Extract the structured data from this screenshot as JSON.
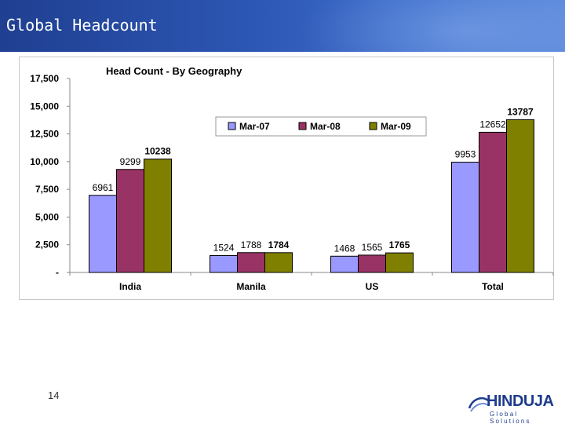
{
  "slide": {
    "title": "Global Headcount",
    "page_number": "14"
  },
  "logo": {
    "name": "HINDUJA",
    "subtitle": "Global Solutions"
  },
  "colors": {
    "header": "#2d57b4",
    "series": [
      "#9999ff",
      "#993366",
      "#808000"
    ]
  },
  "chart_data": {
    "type": "bar",
    "title": "Head Count - By Geography",
    "categories": [
      "India",
      "Manila",
      "US",
      "Total"
    ],
    "series": [
      {
        "name": "Mar-07",
        "values": [
          6961,
          1524,
          1468,
          9953
        ],
        "labels": [
          "6961",
          "1524",
          "1468",
          "9953"
        ]
      },
      {
        "name": "Mar-08",
        "values": [
          9299,
          1788,
          1565,
          12652
        ],
        "labels": [
          "9299",
          "1788",
          "1565",
          "12652"
        ]
      },
      {
        "name": "Mar-09",
        "values": [
          10238,
          1784,
          1765,
          13787
        ],
        "labels": [
          "10238",
          "1784",
          "1765",
          "13787"
        ]
      }
    ],
    "ylim": [
      0,
      17500
    ],
    "yticks": [
      0,
      2500,
      5000,
      7500,
      10000,
      12500,
      15000,
      17500
    ],
    "ytick_labels": [
      "-",
      "2,500",
      "5,000",
      "7,500",
      "10,000",
      "12,500",
      "15,000",
      "17,500"
    ],
    "legend_position": "top-right",
    "grid": false,
    "xlabel": "",
    "ylabel": ""
  }
}
